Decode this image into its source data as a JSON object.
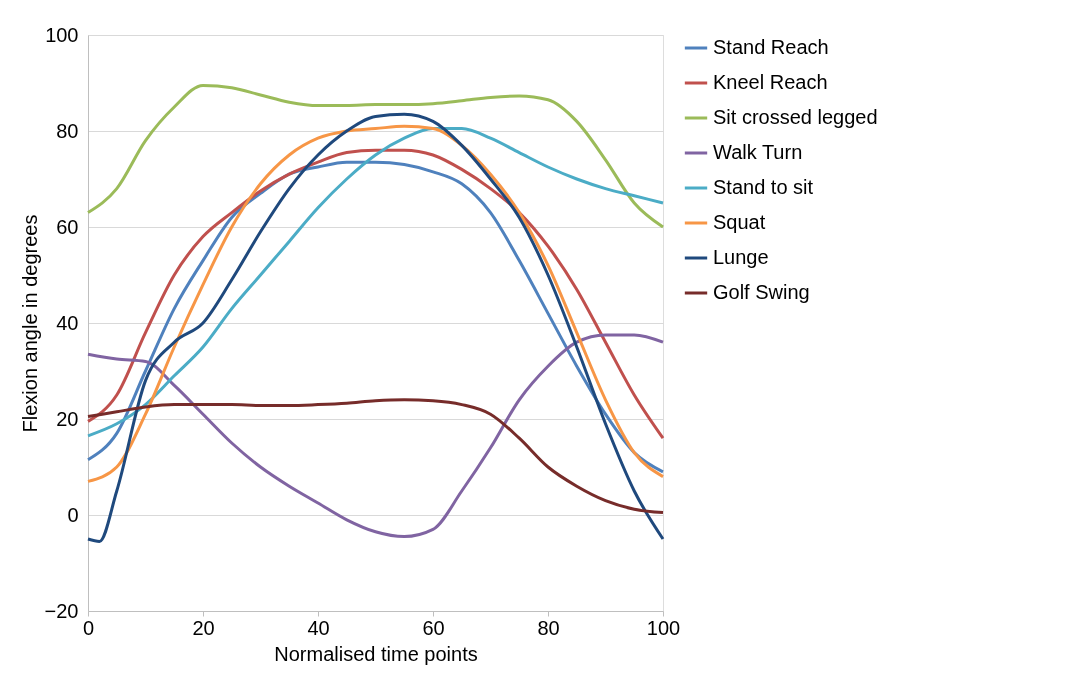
{
  "chart_data": {
    "type": "line",
    "xlabel": "Normalised time points",
    "ylabel": "Flexion angle in degrees",
    "x": [
      0,
      5,
      10,
      15,
      20,
      25,
      30,
      35,
      40,
      45,
      50,
      55,
      60,
      65,
      70,
      75,
      80,
      85,
      90,
      95,
      100
    ],
    "xlim": [
      0,
      100
    ],
    "xticks": [
      0,
      20,
      40,
      60,
      80,
      100
    ],
    "ylim": [
      -20,
      100
    ],
    "yticks": [
      -20,
      0,
      20,
      40,
      60,
      80,
      100
    ],
    "grid": "y",
    "legend": "right",
    "marker": "none",
    "line_style": "solid",
    "series": [
      {
        "name": "Stand Reach",
        "color": "#4f81bd",
        "values": [
          11.5,
          17,
          30,
          43,
          53,
          62,
          67,
          71,
          72.5,
          73.5,
          73.5,
          73,
          71.5,
          69,
          63,
          53,
          42,
          31,
          21,
          13,
          9
        ]
      },
      {
        "name": "Kneel Reach",
        "color": "#c0504d",
        "values": [
          19.5,
          25,
          38,
          50,
          58,
          63,
          67.5,
          71,
          73.5,
          75.5,
          76,
          76,
          75,
          72,
          68,
          63,
          56,
          47,
          36,
          25,
          16
        ]
      },
      {
        "name": "Sit crossed legged",
        "color": "#9bbb59",
        "values": [
          63,
          68,
          78,
          85,
          89.5,
          89,
          87.5,
          86,
          85.3,
          85.3,
          85.5,
          85.5,
          85.7,
          86.3,
          87,
          87.3,
          86.5,
          82,
          74,
          65,
          60
        ]
      },
      {
        "name": "Walk Turn",
        "color": "#8064a2",
        "values": [
          33.5,
          32.5,
          32,
          27,
          21,
          15,
          10,
          6,
          2.5,
          -1,
          -3.5,
          -4.5,
          -3,
          5,
          14,
          24,
          31,
          36,
          37.5,
          37.5,
          36
        ]
      },
      {
        "name": "Stand to sit",
        "color": "#4bacc6",
        "values": [
          16.5,
          19,
          23,
          29,
          35,
          43,
          50,
          57,
          64,
          70,
          75,
          78.5,
          80.5,
          80.5,
          78.5,
          75.5,
          72.5,
          70,
          68,
          66.5,
          65
        ]
      },
      {
        "name": "Squat",
        "color": "#f79646",
        "values": [
          7,
          10,
          21,
          35,
          48,
          60,
          69,
          75,
          78.5,
          80,
          80.5,
          81,
          80.5,
          77,
          71,
          63,
          52,
          38,
          24,
          13,
          8
        ]
      },
      {
        "name": "Lunge",
        "color": "#1f497d",
        "x": [
          0,
          2,
          5,
          10,
          15,
          20,
          25,
          30,
          35,
          40,
          45,
          50,
          55,
          60,
          65,
          70,
          75,
          80,
          85,
          90,
          95,
          100
        ],
        "values": [
          -5,
          -5.5,
          5,
          28,
          36,
          40,
          49,
          59,
          68,
          75,
          80,
          83,
          83.5,
          82,
          77,
          70,
          62,
          50,
          35,
          19,
          5,
          -5
        ]
      },
      {
        "name": "Golf Swing",
        "color": "#772c2a",
        "values": [
          20.5,
          21.5,
          22.5,
          23,
          23,
          23,
          22.8,
          22.8,
          23,
          23.3,
          23.8,
          24,
          23.8,
          23,
          21,
          16,
          10,
          6,
          3,
          1.2,
          0.5
        ]
      }
    ]
  }
}
